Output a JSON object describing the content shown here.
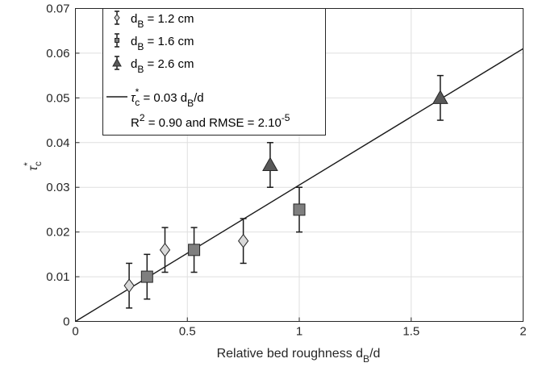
{
  "chart_data": {
    "type": "scatter",
    "xlabel": "Relative bed roughness d",
    "xlabel_sub": "B",
    "xlabel_tail": "/d",
    "ylabel": "τ",
    "ylabel_sup": "*",
    "ylabel_sub": "c",
    "xlim": [
      0,
      2
    ],
    "ylim": [
      0,
      0.07
    ],
    "xticks": [
      0,
      0.5,
      1,
      1.5,
      2
    ],
    "xtick_labels": [
      "0",
      "0.5",
      "1",
      "1.5",
      "2"
    ],
    "yticks": [
      0,
      0.01,
      0.02,
      0.03,
      0.04,
      0.05,
      0.06,
      0.07
    ],
    "ytick_labels": [
      "0",
      "0.01",
      "0.02",
      "0.03",
      "0.04",
      "0.05",
      "0.06",
      "0.07"
    ],
    "grid": true,
    "legend_position": "top-left",
    "series": [
      {
        "name": "d_B = 1.2 cm",
        "marker": "diamond",
        "color": "#d9d9d9",
        "points": [
          {
            "x": 0.24,
            "y": 0.008,
            "lo": 0.003,
            "hi": 0.013
          },
          {
            "x": 0.4,
            "y": 0.016,
            "lo": 0.011,
            "hi": 0.021
          },
          {
            "x": 0.75,
            "y": 0.018,
            "lo": 0.013,
            "hi": 0.023
          }
        ]
      },
      {
        "name": "d_B = 1.6 cm",
        "marker": "square",
        "color": "#7f7f7f",
        "points": [
          {
            "x": 0.32,
            "y": 0.01,
            "lo": 0.005,
            "hi": 0.015
          },
          {
            "x": 0.53,
            "y": 0.016,
            "lo": 0.011,
            "hi": 0.021
          },
          {
            "x": 1.0,
            "y": 0.025,
            "lo": 0.02,
            "hi": 0.03
          }
        ]
      },
      {
        "name": "d_B = 2.6 cm",
        "marker": "triangle",
        "color": "#595959",
        "points": [
          {
            "x": 0.87,
            "y": 0.035,
            "lo": 0.03,
            "hi": 0.04
          },
          {
            "x": 1.63,
            "y": 0.05,
            "lo": 0.045,
            "hi": 0.055
          }
        ]
      }
    ],
    "fit_line": {
      "name": "τc* = 0.03 dB/d",
      "slope": 0.0305,
      "x": [
        0,
        2
      ]
    },
    "legend": {
      "entries": [
        {
          "pre": "d",
          "sub": "B",
          "post": " = 1.2 cm"
        },
        {
          "pre": "d",
          "sub": "B",
          "post": " = 1.6 cm"
        },
        {
          "pre": "d",
          "sub": "B",
          "post": " = 2.6 cm"
        }
      ],
      "fit_pre": "τ",
      "fit_sup": "*",
      "fit_sub": "c",
      "fit_mid": " = 0.03 d",
      "fit_sub2": "B",
      "fit_post": "/d",
      "stats_pre": "R",
      "stats_sup": "2",
      "stats_mid": " = 0.90 and RMSE = 2.10",
      "stats_sup2": "-5"
    }
  }
}
